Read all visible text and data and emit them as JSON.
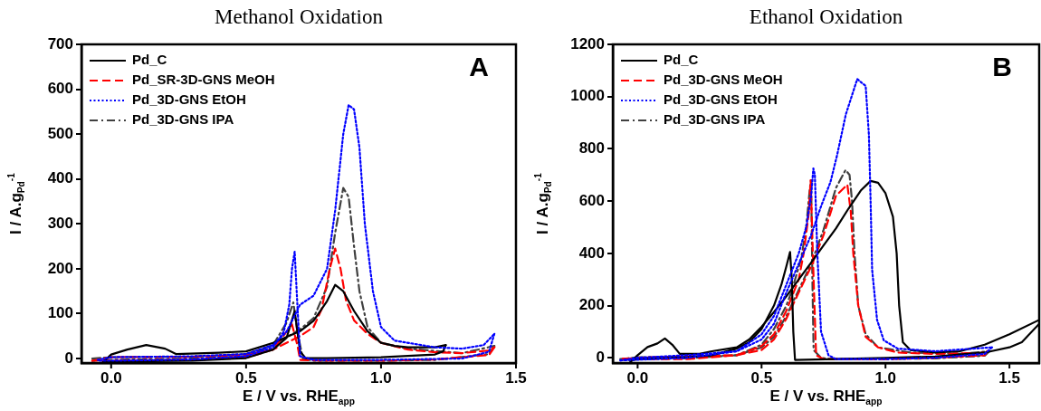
{
  "chart_data": [
    {
      "type": "line",
      "title": "Methanol Oxidation",
      "xlabel": "E / V vs. RHE$_{app}$",
      "ylabel": "I / A.g$_{Pd}$$^{-1}$",
      "xlim": [
        -0.11,
        1.5
      ],
      "ylim": [
        -10,
        700
      ],
      "xticks": [
        {
          "value": 0,
          "label": "0.0"
        },
        {
          "value": 0.5,
          "label": "0.5"
        },
        {
          "value": 1,
          "label": "1.0"
        },
        {
          "value": 1.5,
          "label": "1.5"
        }
      ],
      "yticks": [
        0,
        100,
        200,
        300,
        400,
        500,
        600,
        700
      ],
      "legend": "top left",
      "annotations": [
        "A"
      ],
      "series": [
        {
          "name": "Pd_C",
          "color": "#000000",
          "line_style": "solid",
          "x": [
            -0.03,
            0.0,
            0.06,
            0.13,
            0.2,
            0.24,
            0.4,
            0.5,
            0.6,
            0.7,
            0.75,
            0.8,
            0.83,
            0.86,
            0.9,
            0.95,
            1.0,
            1.05,
            1.1,
            1.2,
            1.24
          ],
          "values": [
            -8,
            9,
            20,
            30,
            22,
            10,
            13,
            16,
            35,
            61,
            84,
            128,
            164,
            150,
            106,
            61,
            35,
            28,
            25,
            25,
            30
          ]
        },
        {
          "color": "#000000",
          "line_style": "solid",
          "x": [
            1.24,
            1.23,
            1.2,
            1.0,
            0.8,
            0.72,
            0.7,
            0.69,
            0.68,
            0.65,
            0.6,
            0.5,
            0.3,
            0.0,
            -0.03
          ],
          "values": [
            30,
            16,
            9,
            3,
            1,
            1,
            16,
            61,
            106,
            46,
            20,
            1,
            -5,
            -7,
            -8
          ]
        },
        {
          "name": "Pd_SR-3D-GNS MeOH",
          "color": "#ff0000",
          "line_style": "dashed",
          "x": [
            -0.07,
            0.0,
            0.3,
            0.5,
            0.6,
            0.7,
            0.75,
            0.78,
            0.81,
            0.83,
            0.85,
            0.87,
            0.9,
            0.95,
            1.0,
            1.1,
            1.2,
            1.3,
            1.4,
            1.42
          ],
          "values": [
            -5,
            3,
            4,
            8,
            20,
            50,
            70,
            110,
            200,
            245,
            200,
            130,
            85,
            55,
            35,
            20,
            14,
            12,
            18,
            25
          ]
        },
        {
          "color": "#ff0000",
          "line_style": "dashed",
          "x": [
            1.42,
            1.4,
            1.2,
            1.0,
            0.8,
            0.7,
            0.69,
            0.67,
            0.65,
            0.6,
            0.5,
            0.3,
            0.0,
            -0.07
          ],
          "values": [
            25,
            8,
            -2,
            -5,
            -5,
            -3,
            30,
            76,
            60,
            20,
            2,
            -3,
            -5,
            -5
          ]
        },
        {
          "name": "Pd_3D-GNS EtOH",
          "color": "#0000ff",
          "line_style": "dotted",
          "x": [
            -0.05,
            0.0,
            0.3,
            0.5,
            0.6,
            0.65,
            0.7,
            0.75,
            0.8,
            0.83,
            0.86,
            0.88,
            0.9,
            0.92,
            0.94,
            0.97,
            1.0,
            1.05,
            1.2,
            1.3,
            1.38,
            1.42
          ],
          "values": [
            -3,
            3,
            5,
            10,
            30,
            60,
            120,
            140,
            200,
            330,
            500,
            565,
            555,
            470,
            300,
            150,
            70,
            40,
            25,
            22,
            30,
            55
          ]
        },
        {
          "color": "#0000ff",
          "line_style": "dotted",
          "x": [
            1.42,
            1.4,
            1.3,
            1.0,
            0.75,
            0.7,
            0.69,
            0.68,
            0.67,
            0.66,
            0.64,
            0.6,
            0.5,
            0.3,
            0.0,
            -0.05
          ],
          "values": [
            55,
            15,
            0,
            -3,
            -3,
            5,
            120,
            238,
            200,
            120,
            60,
            25,
            5,
            -2,
            -5,
            -5
          ]
        },
        {
          "name": "Pd_3D-GNS IPA",
          "color": "#404040",
          "line_style": "dashdot",
          "x": [
            -0.07,
            0.0,
            0.3,
            0.5,
            0.6,
            0.7,
            0.75,
            0.8,
            0.83,
            0.86,
            0.88,
            0.9,
            0.92,
            0.95,
            1.0,
            1.1,
            1.3,
            1.42
          ],
          "values": [
            0,
            3,
            4,
            10,
            30,
            65,
            90,
            160,
            280,
            380,
            360,
            250,
            150,
            70,
            35,
            22,
            12,
            28
          ]
        },
        {
          "color": "#404040",
          "line_style": "dashdot",
          "x": [
            1.42,
            1.4,
            1.2,
            1.0,
            0.75,
            0.71,
            0.69,
            0.675,
            0.65,
            0.6,
            0.5,
            0.3,
            0.0,
            -0.07
          ],
          "values": [
            28,
            10,
            -3,
            -5,
            -5,
            0,
            60,
            125,
            80,
            30,
            5,
            0,
            -3,
            -5
          ]
        }
      ]
    },
    {
      "type": "line",
      "title": "Ethanol Oxidation",
      "xlabel": "E / V vs. RHE$_{app}$",
      "ylabel": "I / A.g$_{Pd}$$^{-1}$",
      "xlim": [
        -0.1,
        1.62
      ],
      "ylim": [
        -20,
        1200
      ],
      "xticks": [
        {
          "value": 0,
          "label": "0.0"
        },
        {
          "value": 0.5,
          "label": "0.5"
        },
        {
          "value": 1,
          "label": "1.0"
        },
        {
          "value": 1.5,
          "label": "1.5"
        }
      ],
      "yticks": [
        0,
        200,
        400,
        600,
        800,
        1000,
        1200
      ],
      "legend": "top left",
      "annotations": [
        "B"
      ],
      "series": [
        {
          "name": "Pd_C",
          "color": "#000000",
          "line_style": "solid",
          "x": [
            -0.03,
            0.0,
            0.04,
            0.08,
            0.11,
            0.14,
            0.17,
            0.25,
            0.3,
            0.4,
            0.45,
            0.5,
            0.55,
            0.6,
            0.65,
            0.7,
            0.75,
            0.8,
            0.85,
            0.9,
            0.94,
            0.97,
            1.0,
            1.03,
            1.045,
            1.055,
            1.07,
            1.1,
            1.2,
            1.3,
            1.4,
            1.5,
            1.62
          ],
          "values": [
            -17,
            10,
            41,
            55,
            74,
            50,
            15,
            15,
            25,
            40,
            70,
            119,
            175,
            235,
            300,
            364,
            430,
            495,
            570,
            640,
            677,
            670,
            630,
            540,
            400,
            200,
            60,
            30,
            20,
            25,
            50,
            90,
            145
          ]
        },
        {
          "color": "#000000",
          "line_style": "solid",
          "x": [
            1.62,
            1.55,
            1.5,
            1.4,
            1.2,
            1.0,
            0.8,
            0.635,
            0.628,
            0.622,
            0.615,
            0.6,
            0.58,
            0.55,
            0.5,
            0.45,
            0.4,
            0.3,
            0.2,
            0.0,
            -0.03
          ],
          "values": [
            130,
            60,
            40,
            20,
            5,
            0,
            -5,
            -8,
            100,
            300,
            405,
            350,
            280,
            200,
            110,
            60,
            35,
            10,
            2,
            -5,
            -10
          ]
        },
        {
          "name": "Pd_3D-GNS MeOH",
          "color": "#ff0000",
          "line_style": "dashed",
          "x": [
            -0.06,
            0.0,
            0.2,
            0.4,
            0.5,
            0.55,
            0.6,
            0.65,
            0.7,
            0.75,
            0.8,
            0.846,
            0.86,
            0.87,
            0.89,
            0.92,
            0.97,
            1.05,
            1.2,
            1.38,
            1.41
          ],
          "values": [
            -4,
            0,
            5,
            10,
            30,
            70,
            150,
            250,
            350,
            470,
            620,
            663,
            560,
            400,
            200,
            80,
            40,
            20,
            15,
            18,
            25
          ]
        },
        {
          "color": "#ff0000",
          "line_style": "dashed",
          "x": [
            1.41,
            1.4,
            1.2,
            1.0,
            0.75,
            0.72,
            0.71,
            0.698,
            0.69,
            0.67,
            0.65,
            0.6,
            0.55,
            0.5,
            0.4,
            0.2,
            -0.06
          ],
          "values": [
            25,
            10,
            0,
            -5,
            -5,
            10,
            300,
            680,
            550,
            400,
            300,
            180,
            90,
            45,
            10,
            -5,
            -4
          ]
        },
        {
          "name": "Pd_3D-GNS EtOH",
          "color": "#0000ff",
          "line_style": "dotted",
          "x": [
            -0.07,
            0.0,
            0.2,
            0.4,
            0.5,
            0.55,
            0.6,
            0.65,
            0.7,
            0.74,
            0.778,
            0.805,
            0.84,
            0.886,
            0.92,
            0.933,
            0.94,
            0.946,
            0.966,
            0.993,
            1.05,
            1.2,
            1.43
          ],
          "values": [
            -10,
            0,
            10,
            25,
            70,
            130,
            250,
            360,
            470,
            580,
            673,
            777,
            932,
            1067,
            1041,
            854,
            596,
            338,
            145,
            67,
            35,
            25,
            40
          ]
        },
        {
          "color": "#0000ff",
          "line_style": "dotted",
          "x": [
            1.43,
            1.4,
            1.2,
            1.0,
            0.8,
            0.77,
            0.74,
            0.725,
            0.715,
            0.709,
            0.7,
            0.68,
            0.65,
            0.6,
            0.55,
            0.5,
            0.4,
            0.2,
            -0.07
          ],
          "values": [
            40,
            15,
            0,
            -5,
            -5,
            10,
            100,
            400,
            700,
            725,
            620,
            500,
            400,
            280,
            160,
            90,
            25,
            0,
            -10
          ]
        },
        {
          "name": "Pd_3D-GNS IPA",
          "color": "#404040",
          "line_style": "dashdot",
          "x": [
            -0.07,
            0.0,
            0.2,
            0.4,
            0.5,
            0.55,
            0.6,
            0.65,
            0.7,
            0.75,
            0.8,
            0.839,
            0.855,
            0.865,
            0.875,
            0.89,
            0.92,
            0.97,
            1.1,
            1.3,
            1.42
          ],
          "values": [
            -5,
            2,
            5,
            10,
            40,
            80,
            160,
            260,
            360,
            490,
            650,
            719,
            700,
            600,
            400,
            200,
            90,
            40,
            20,
            15,
            25
          ]
        },
        {
          "color": "#404040",
          "line_style": "dashdot",
          "x": [
            1.42,
            1.4,
            1.2,
            1.0,
            0.78,
            0.74,
            0.71,
            0.705,
            0.7,
            0.695,
            0.68,
            0.66,
            0.62,
            0.6,
            0.55,
            0.5,
            0.4,
            0.2,
            -0.07
          ],
          "values": [
            25,
            8,
            -2,
            -5,
            -5,
            0,
            30,
            300,
            680,
            650,
            500,
            380,
            250,
            200,
            110,
            50,
            10,
            -2,
            -8
          ]
        }
      ]
    }
  ]
}
